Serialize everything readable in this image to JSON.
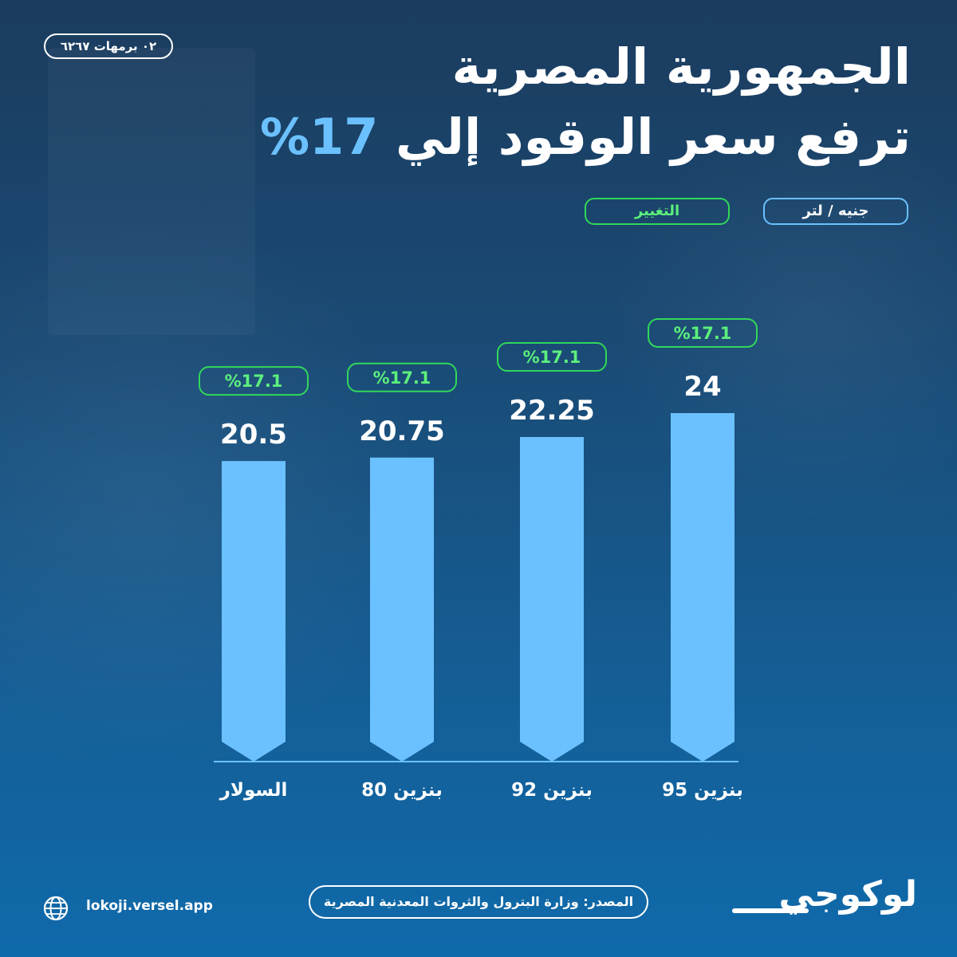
{
  "date": "٠٢ برمهات ٦٢٦٧",
  "title": {
    "line1": "الجمهورية المصرية",
    "line2": "ترفع سعر الوقود إلي",
    "accent": "17%"
  },
  "legend": {
    "unit": "جنيه / لتر",
    "change": "التغيير"
  },
  "colors": {
    "bar": "#6bc1ff",
    "change_border": "#31d85a",
    "change_text": "#5cf07c",
    "accent": "#6bc1ff"
  },
  "chart_data": {
    "type": "bar",
    "categories": [
      "السولار",
      "بنزين 80",
      "بنزين 92",
      "بنزين 95"
    ],
    "values": [
      20.5,
      20.75,
      22.25,
      24
    ],
    "value_labels": [
      "20.5",
      "20.75",
      "22.25",
      "24"
    ],
    "change_labels": [
      "%17.1",
      "%17.1",
      "%17.1",
      "%17.1"
    ],
    "series": [
      {
        "values": [
          20.5,
          20.75,
          22.25,
          24
        ]
      }
    ],
    "ylim": [
      0,
      24
    ],
    "grid": false
  },
  "footer": {
    "source_label": "المصدر:",
    "source_text": "وزارة البترول والثروات المعدنية المصرية",
    "website": "lokoji.versel.app",
    "logo": "لوكوجي",
    "globe_icon": "globe-icon"
  }
}
